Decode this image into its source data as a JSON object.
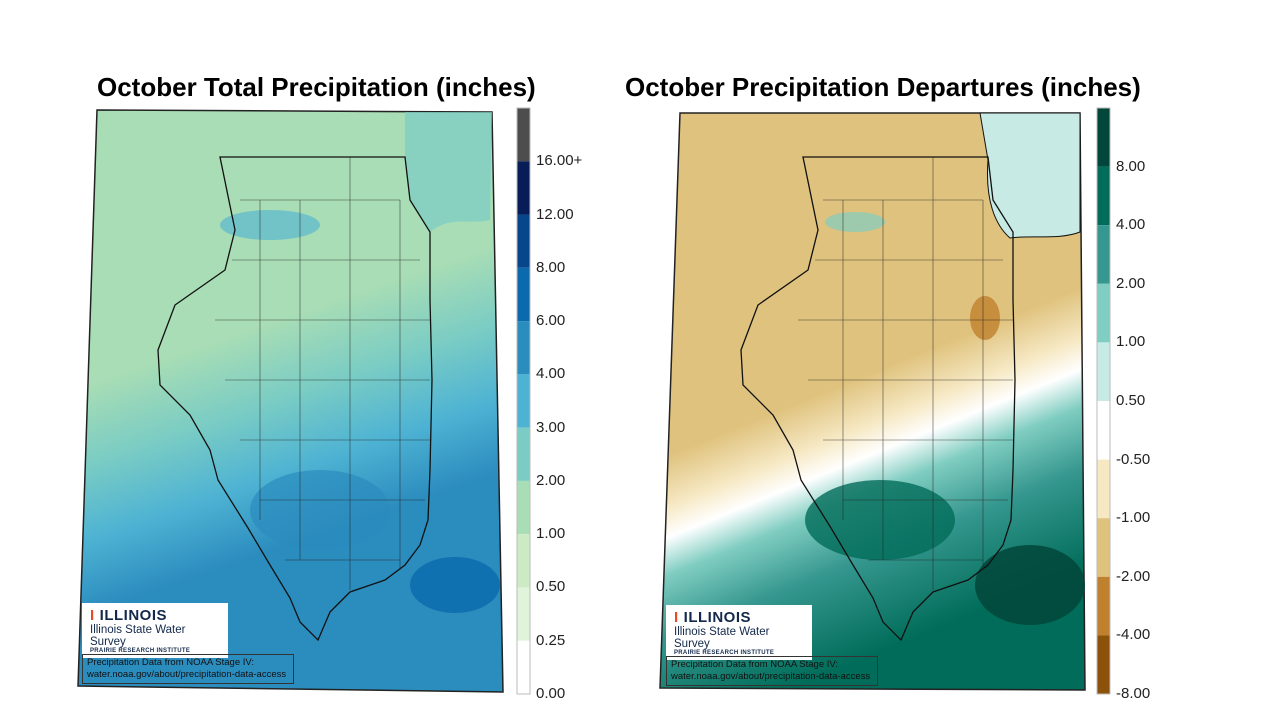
{
  "maps": [
    {
      "title": "October Total Precipitation (inches)",
      "legend": {
        "labels": [
          "16.00+",
          "12.00",
          "8.00",
          "6.00",
          "4.00",
          "3.00",
          "2.00",
          "1.00",
          "0.50",
          "0.25",
          "0.00"
        ],
        "colors": [
          "#4d4d4d",
          "#081d58",
          "#08468c",
          "#0a6aad",
          "#2b8cbe",
          "#4eb3d3",
          "#7accc4",
          "#a8ddb5",
          "#ccebc5",
          "#e0f3db",
          "#ffffff"
        ]
      },
      "logo": {
        "brand": "ILLINOIS",
        "org": "Illinois State Water Survey",
        "sub": "PRAIRIE RESEARCH INSTITUTE"
      },
      "source": {
        "line1": "Precipitation Data from NOAA Stage IV:",
        "line2": "water.noaa.gov/about/precipitation-data-access"
      }
    },
    {
      "title": "October Precipitation Departures (inches)",
      "legend": {
        "labels": [
          "8.00",
          "4.00",
          "2.00",
          "1.00",
          "0.50",
          "-0.50",
          "-1.00",
          "-2.00",
          "-4.00",
          "-8.00"
        ],
        "colors": [
          "#01463a",
          "#016c59",
          "#35978f",
          "#80cdc1",
          "#c7eae5",
          "#ffffff",
          "#f6e8c3",
          "#dfc27d",
          "#bf812d",
          "#8c510a"
        ]
      },
      "logo": {
        "brand": "ILLINOIS",
        "org": "Illinois State Water Survey",
        "sub": "PRAIRIE RESEARCH INSTITUTE"
      },
      "source": {
        "line1": "Precipitation Data from NOAA Stage IV:",
        "line2": "water.noaa.gov/about/precipitation-data-access"
      }
    }
  ]
}
